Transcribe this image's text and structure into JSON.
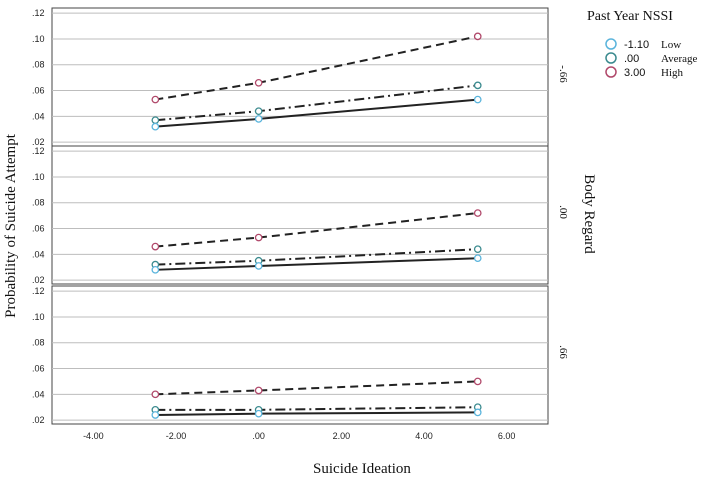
{
  "chart_data": {
    "type": "line",
    "xlabel": "Suicide Ideation",
    "ylabel": "Probability of Suicide Attempt",
    "xlim": [
      -5,
      7
    ],
    "ylim": [
      0.017,
      0.124
    ],
    "x_ticks": [
      -4,
      -2,
      0,
      2,
      4,
      6
    ],
    "x_tick_labels": [
      "-4.00",
      "-2.00",
      ".00",
      "2.00",
      "4.00",
      "6.00"
    ],
    "y_ticks": [
      0.02,
      0.04,
      0.06,
      0.08,
      0.1,
      0.12
    ],
    "y_tick_labels": [
      ".02",
      ".04",
      ".06",
      ".08",
      ".10",
      ".12"
    ],
    "facet_title": "Body Regard",
    "legend": {
      "title": "Past Year NSSI",
      "entries": [
        {
          "value": "-1.10",
          "label": "Low",
          "color": "#5ab4dc"
        },
        {
          "value": ".00",
          "label": "Average",
          "color": "#3a8a8e"
        },
        {
          "value": "3.00",
          "label": "High",
          "color": "#b0486a"
        }
      ]
    },
    "x": [
      -2.5,
      0,
      5.3
    ],
    "panels": [
      {
        "label": "-.66",
        "series": [
          {
            "name": "High",
            "values": [
              0.053,
              0.066,
              0.102
            ]
          },
          {
            "name": "Average",
            "values": [
              0.037,
              0.044,
              0.064
            ]
          },
          {
            "name": "Low",
            "values": [
              0.032,
              0.038,
              0.053
            ]
          }
        ]
      },
      {
        "label": ".00",
        "series": [
          {
            "name": "High",
            "values": [
              0.046,
              0.053,
              0.072
            ]
          },
          {
            "name": "Average",
            "values": [
              0.032,
              0.035,
              0.044
            ]
          },
          {
            "name": "Low",
            "values": [
              0.028,
              0.031,
              0.037
            ]
          }
        ]
      },
      {
        "label": ".66",
        "series": [
          {
            "name": "High",
            "values": [
              0.04,
              0.043,
              0.05
            ]
          },
          {
            "name": "Average",
            "values": [
              0.028,
              0.028,
              0.03
            ]
          },
          {
            "name": "Low",
            "values": [
              0.024,
              0.025,
              0.026
            ]
          }
        ]
      }
    ]
  }
}
